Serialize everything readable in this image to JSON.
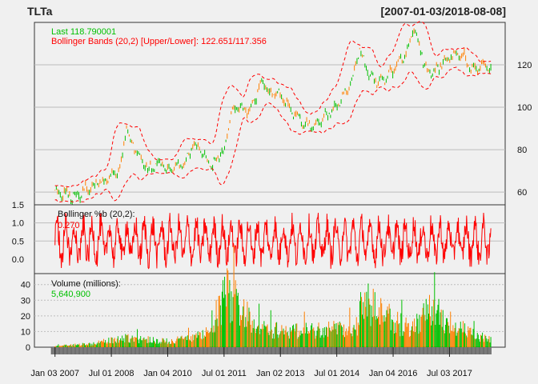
{
  "colors": {
    "background": "#f0f0f0",
    "panel": "#f0f0f0",
    "up": "#00c000",
    "down": "#ff8000",
    "bands": "#ff0000",
    "percent_b": "#ff0000",
    "grid": "#bdbdbd"
  },
  "chart_data": {
    "type": "candlestick",
    "title": "TLTa",
    "date_range": "[2007-01-03/2018-08-08]",
    "panels": [
      {
        "name": "price",
        "legend": [
          {
            "text": "Last 118.790001",
            "color": "#00c000"
          },
          {
            "text": "Bollinger Bands (20,2) [Upper/Lower]: 122.651/117.356",
            "color": "#ff0000"
          }
        ],
        "y_ticks": [
          60,
          80,
          100,
          120
        ],
        "y_range": [
          54,
          140
        ],
        "series": [
          {
            "name": "TLTa",
            "points": [
              {
                "x": 2007.0,
                "y": 60
              },
              {
                "x": 2007.4,
                "y": 59
              },
              {
                "x": 2007.6,
                "y": 58
              },
              {
                "x": 2008.0,
                "y": 63
              },
              {
                "x": 2008.4,
                "y": 66
              },
              {
                "x": 2008.75,
                "y": 71
              },
              {
                "x": 2008.9,
                "y": 91
              },
              {
                "x": 2009.0,
                "y": 84
              },
              {
                "x": 2009.2,
                "y": 78
              },
              {
                "x": 2009.5,
                "y": 71
              },
              {
                "x": 2009.8,
                "y": 74
              },
              {
                "x": 2010.0,
                "y": 70
              },
              {
                "x": 2010.4,
                "y": 72
              },
              {
                "x": 2010.7,
                "y": 83
              },
              {
                "x": 2011.0,
                "y": 77
              },
              {
                "x": 2011.2,
                "y": 73
              },
              {
                "x": 2011.5,
                "y": 80
              },
              {
                "x": 2011.7,
                "y": 98
              },
              {
                "x": 2011.9,
                "y": 100
              },
              {
                "x": 2012.2,
                "y": 98
              },
              {
                "x": 2012.5,
                "y": 113
              },
              {
                "x": 2012.7,
                "y": 107
              },
              {
                "x": 2013.0,
                "y": 105
              },
              {
                "x": 2013.4,
                "y": 97
              },
              {
                "x": 2013.7,
                "y": 91
              },
              {
                "x": 2014.0,
                "y": 93
              },
              {
                "x": 2014.5,
                "y": 100
              },
              {
                "x": 2014.9,
                "y": 112
              },
              {
                "x": 2015.1,
                "y": 128
              },
              {
                "x": 2015.3,
                "y": 118
              },
              {
                "x": 2015.6,
                "y": 111
              },
              {
                "x": 2016.0,
                "y": 117
              },
              {
                "x": 2016.4,
                "y": 127
              },
              {
                "x": 2016.55,
                "y": 138
              },
              {
                "x": 2016.7,
                "y": 130
              },
              {
                "x": 2016.9,
                "y": 116
              },
              {
                "x": 2017.2,
                "y": 118
              },
              {
                "x": 2017.6,
                "y": 125
              },
              {
                "x": 2017.9,
                "y": 124
              },
              {
                "x": 2018.1,
                "y": 117
              },
              {
                "x": 2018.4,
                "y": 120
              },
              {
                "x": 2018.6,
                "y": 119
              }
            ]
          }
        ]
      },
      {
        "name": "bollinger_pctb",
        "legend": [
          {
            "text": "Bollinger %b (20,2):",
            "color": "#111111"
          },
          {
            "text": "0.270",
            "color": "#ff0000"
          }
        ],
        "y_ticks": [
          0.0,
          0.5,
          1.0,
          1.5
        ],
        "y_tick_labels": [
          "0.0",
          "0.5",
          "1.0",
          "1.5"
        ],
        "y_range": [
          -0.4,
          1.5
        ]
      },
      {
        "name": "volume",
        "legend": [
          {
            "text": "Volume (millions):",
            "color": "#111111"
          },
          {
            "text": "5,640,900",
            "color": "#00c000"
          }
        ],
        "y_ticks": [
          0,
          10,
          20,
          30,
          40
        ],
        "y_range": [
          0,
          47
        ],
        "series": [
          {
            "name": "Volume (millions)",
            "points": [
              {
                "x": 2007.0,
                "y": 1
              },
              {
                "x": 2008.0,
                "y": 3
              },
              {
                "x": 2008.9,
                "y": 8
              },
              {
                "x": 2010.0,
                "y": 5
              },
              {
                "x": 2011.0,
                "y": 10
              },
              {
                "x": 2011.6,
                "y": 46
              },
              {
                "x": 2012.5,
                "y": 15
              },
              {
                "x": 2013.5,
                "y": 14
              },
              {
                "x": 2015.0,
                "y": 16
              },
              {
                "x": 2015.2,
                "y": 38
              },
              {
                "x": 2016.5,
                "y": 14
              },
              {
                "x": 2017.0,
                "y": 32
              },
              {
                "x": 2018.0,
                "y": 12
              },
              {
                "x": 2018.6,
                "y": 6
              }
            ]
          }
        ]
      }
    ],
    "x_range": [
      2006.6,
      2018.75
    ],
    "x_ticks": [
      {
        "label": "Jan 03 2007",
        "x": 2007.0
      },
      {
        "label": "Jul 01 2008",
        "x": 2008.5
      },
      {
        "label": "Jan 04 2010",
        "x": 2010.0
      },
      {
        "label": "Jul 01 2011",
        "x": 2011.5
      },
      {
        "label": "Jan 02 2013",
        "x": 2013.0
      },
      {
        "label": "Jul 01 2014",
        "x": 2014.5
      },
      {
        "label": "Jan 04 2016",
        "x": 2016.0
      },
      {
        "label": "Jul 03 2017",
        "x": 2017.5
      }
    ],
    "grid": true
  }
}
